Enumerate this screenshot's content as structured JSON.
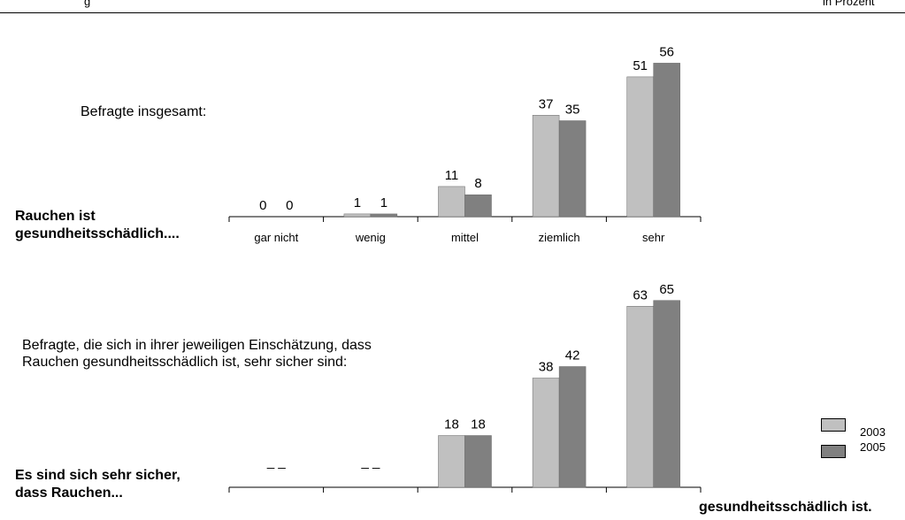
{
  "header": {
    "left_fragment": "g",
    "right_fragment": "in Prozent"
  },
  "chart1": {
    "note": "Befragte insgesamt:",
    "side_label_line1": "Rauchen ist",
    "side_label_line2": "gesundheitsschädlich...."
  },
  "chart2": {
    "note_line1": "Befragte, die sich in ihrer jeweiligen Einschätzung, dass",
    "note_line2": "Rauchen gesundheitsschädlich ist, sehr sicher sind:",
    "side_label_line1": "Es sind sich sehr sicher,",
    "side_label_line2": "dass Rauchen...",
    "bottom_right_label": "gesundheitsschädlich ist."
  },
  "legend": {
    "items": [
      {
        "label": "2003",
        "color": "#c0c0c0"
      },
      {
        "label": "2005",
        "color": "#808080"
      }
    ]
  },
  "chart_data": [
    {
      "type": "bar",
      "categories": [
        "gar nicht",
        "wenig",
        "mittel",
        "ziemlich",
        "sehr"
      ],
      "series": [
        {
          "name": "2003",
          "color": "#c0c0c0",
          "values": [
            0,
            1,
            11,
            37,
            51
          ]
        },
        {
          "name": "2005",
          "color": "#808080",
          "values": [
            0,
            1,
            8,
            35,
            56
          ]
        }
      ]
    },
    {
      "type": "bar",
      "categories": [
        "",
        "",
        "",
        "",
        ""
      ],
      "series": [
        {
          "name": "2003",
          "color": "#c0c0c0",
          "values": [
            null,
            null,
            18,
            38,
            63
          ],
          "labels": [
            "_ _",
            "_ _",
            "18",
            "38",
            "63"
          ]
        },
        {
          "name": "2005",
          "color": "#808080",
          "values": [
            null,
            null,
            18,
            42,
            65
          ],
          "labels": [
            "",
            "",
            "18",
            "42",
            "65"
          ]
        }
      ]
    }
  ]
}
